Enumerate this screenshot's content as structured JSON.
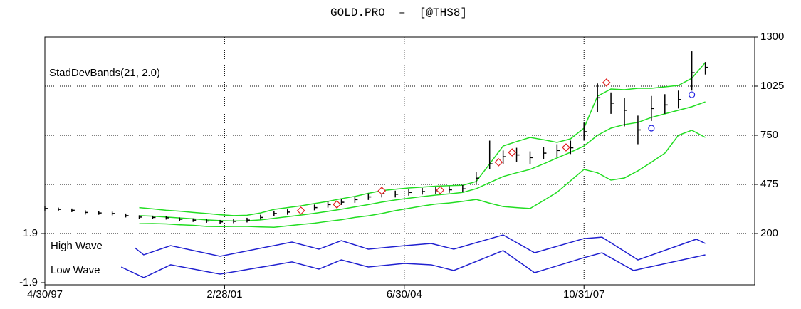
{
  "chart_data": {
    "type": "ohlc",
    "title": "GOLD.PRO  –  [@THS8]",
    "xlim": [
      0,
      158
    ],
    "xticks": [
      {
        "value": 0,
        "label": "4/30/97"
      },
      {
        "value": 40,
        "label": "2/28/01"
      },
      {
        "value": 80,
        "label": "6/30/04"
      },
      {
        "value": 120,
        "label": "10/31/07"
      }
    ],
    "ylim": [
      200,
      1300
    ],
    "yticks": [
      200,
      475,
      750,
      1025,
      1300
    ],
    "grid": true,
    "color": "#000000",
    "x": [
      0,
      3,
      6,
      9,
      12,
      15,
      18,
      21,
      24,
      27,
      30,
      33,
      36,
      39,
      42,
      45,
      48,
      51,
      54,
      57,
      60,
      63,
      66,
      69,
      72,
      75,
      78,
      81,
      84,
      87,
      90,
      93,
      96,
      99,
      102,
      105,
      108,
      111,
      114,
      117,
      120,
      123,
      126,
      129,
      132,
      135,
      138,
      141,
      144,
      147
    ],
    "high": [
      352,
      345,
      340,
      330,
      325,
      322,
      312,
      302,
      300,
      298,
      290,
      285,
      280,
      276,
      280,
      288,
      305,
      328,
      335,
      348,
      362,
      380,
      392,
      408,
      425,
      445,
      440,
      450,
      455,
      460,
      465,
      472,
      545,
      720,
      665,
      680,
      660,
      685,
      700,
      720,
      820,
      1040,
      990,
      960,
      860,
      970,
      980,
      1000,
      1220,
      1160
    ],
    "low": [
      328,
      325,
      320,
      306,
      305,
      302,
      290,
      282,
      280,
      278,
      270,
      265,
      260,
      255,
      258,
      262,
      278,
      298,
      305,
      314,
      330,
      345,
      360,
      372,
      388,
      402,
      402,
      412,
      418,
      422,
      428,
      432,
      478,
      560,
      590,
      600,
      590,
      615,
      630,
      645,
      720,
      880,
      870,
      800,
      700,
      830,
      870,
      900,
      1000,
      1090
    ],
    "close": [
      340,
      335,
      330,
      318,
      315,
      312,
      300,
      292,
      290,
      288,
      280,
      275,
      270,
      265,
      268,
      275,
      290,
      312,
      320,
      330,
      345,
      362,
      375,
      390,
      405,
      423,
      420,
      430,
      435,
      440,
      445,
      450,
      510,
      590,
      630,
      640,
      625,
      650,
      665,
      680,
      770,
      960,
      930,
      890,
      780,
      900,
      920,
      950,
      1100,
      1130
    ],
    "bands": {
      "label": "StadDevBands(21, 2.0)",
      "color": "#22dd22",
      "x": [
        21,
        24,
        27,
        30,
        33,
        36,
        39,
        42,
        45,
        48,
        51,
        54,
        57,
        60,
        63,
        66,
        69,
        72,
        75,
        78,
        81,
        84,
        87,
        90,
        93,
        96,
        99,
        102,
        105,
        108,
        111,
        114,
        117,
        120,
        123,
        126,
        129,
        132,
        135,
        138,
        141,
        144,
        147
      ],
      "upper": [
        345,
        338,
        330,
        325,
        318,
        312,
        305,
        300,
        302,
        315,
        335,
        345,
        355,
        368,
        380,
        395,
        408,
        425,
        440,
        448,
        455,
        460,
        465,
        468,
        470,
        491,
        590,
        690,
        715,
        738,
        725,
        710,
        730,
        790,
        969,
        1009,
        1005,
        1013,
        1013,
        1021,
        1029,
        1069,
        1157
      ],
      "middle": [
        300,
        297,
        292,
        287,
        282,
        276,
        272,
        270,
        271,
        276,
        285,
        294,
        303,
        313,
        324,
        336,
        349,
        362,
        376,
        388,
        398,
        407,
        415,
        422,
        430,
        451,
        485,
        519,
        540,
        559,
        590,
        623,
        655,
        690,
        750,
        790,
        810,
        822,
        850,
        870,
        890,
        910,
        937
      ],
      "lower": [
        255,
        256,
        254,
        249,
        246,
        240,
        239,
        240,
        240,
        237,
        235,
        243,
        251,
        258,
        268,
        277,
        290,
        299,
        312,
        328,
        341,
        354,
        365,
        371,
        380,
        391,
        370,
        351,
        345,
        340,
        385,
        431,
        495,
        559,
        540,
        499,
        511,
        551,
        599,
        650,
        750,
        778,
        738
      ]
    },
    "markers": [
      {
        "shape": "diamond",
        "color": "#e02020",
        "x": [
          57,
          65,
          75,
          88,
          101,
          104,
          116,
          125
        ],
        "values": [
          328,
          363,
          439,
          443,
          599,
          654,
          682,
          1045
        ]
      },
      {
        "shape": "circle",
        "color": "#2020e0",
        "x": [
          135,
          144
        ],
        "values": [
          790,
          977
        ]
      }
    ],
    "indicator": {
      "ylim": [
        -1.9,
        1.9
      ],
      "yticks": [
        -1.9,
        1.9
      ],
      "series": [
        {
          "name": "High Wave",
          "color": "#2020d0",
          "x": [
            20,
            22,
            28,
            39,
            55,
            61,
            66,
            72,
            80,
            86,
            91,
            102,
            109,
            120,
            124,
            132,
            145,
            147
          ],
          "values": [
            0.8,
            0.25,
            0.96,
            0.14,
            1.24,
            0.69,
            1.35,
            0.69,
            0.96,
            1.13,
            0.69,
            1.79,
            0.41,
            1.51,
            1.62,
            -0.14,
            1.46,
            1.13
          ]
        },
        {
          "name": "Low Wave",
          "color": "#2020d0",
          "x": [
            17,
            22,
            28,
            39,
            55,
            61,
            66,
            72,
            80,
            86,
            91,
            102,
            109,
            120,
            124,
            131,
            147
          ],
          "values": [
            -0.69,
            -1.51,
            -0.52,
            -1.24,
            -0.3,
            -0.85,
            -0.14,
            -0.69,
            -0.41,
            -0.52,
            -0.96,
            0.58,
            -1.13,
            0.03,
            0.41,
            -0.96,
            0.25
          ]
        }
      ]
    }
  }
}
